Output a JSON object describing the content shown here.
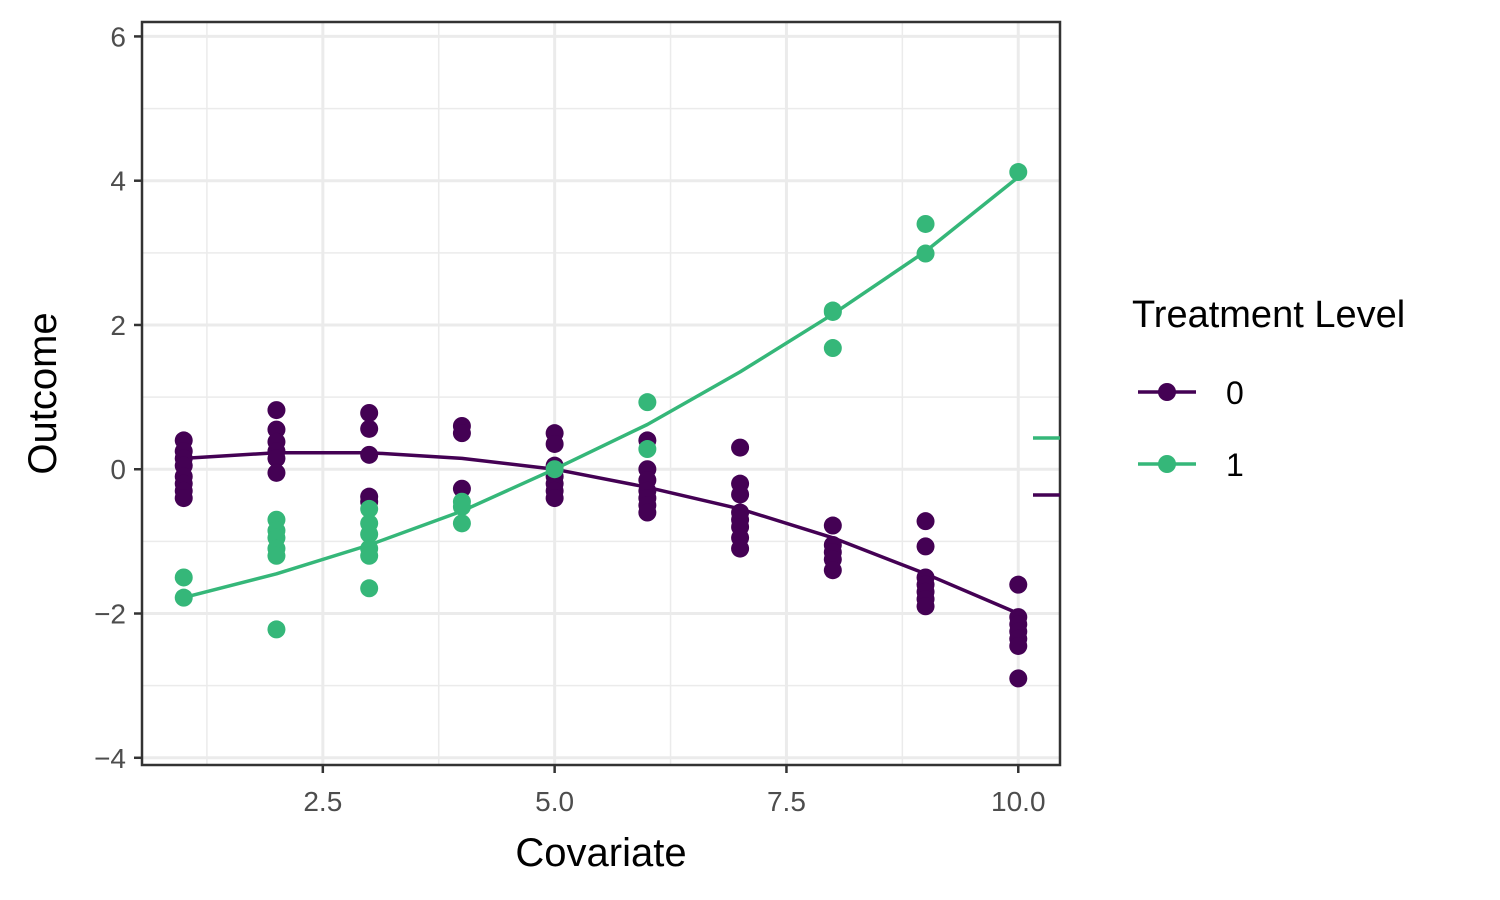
{
  "chart_data": {
    "type": "scatter",
    "title": "",
    "xlabel": "Covariate",
    "ylabel": "Outcome",
    "xlim": [
      0.55,
      10.45
    ],
    "ylim": [
      -4.1,
      6.2
    ],
    "x_ticks": [
      2.5,
      5.0,
      7.5,
      10.0
    ],
    "x_tick_labels": [
      "2.5",
      "5.0",
      "7.5",
      "10.0"
    ],
    "y_ticks": [
      -4,
      -2,
      0,
      2,
      4,
      6
    ],
    "y_tick_labels": [
      "−4",
      "−2",
      "0",
      "2",
      "4",
      "6"
    ],
    "grid": true,
    "legend": {
      "title": "Treatment Level",
      "position": "right"
    },
    "series": [
      {
        "name": "0",
        "color": "#440154",
        "points": [
          [
            1,
            0.4
          ],
          [
            1,
            0.25
          ],
          [
            1,
            0.15
          ],
          [
            1,
            0.05
          ],
          [
            1,
            -0.1
          ],
          [
            1,
            -0.2
          ],
          [
            1,
            -0.3
          ],
          [
            1,
            -0.4
          ],
          [
            2,
            0.82
          ],
          [
            2,
            0.55
          ],
          [
            2,
            0.38
          ],
          [
            2,
            0.25
          ],
          [
            2,
            0.15
          ],
          [
            2,
            -0.05
          ],
          [
            3,
            0.78
          ],
          [
            3,
            0.56
          ],
          [
            3,
            0.2
          ],
          [
            3,
            -0.38
          ],
          [
            3,
            -0.45
          ],
          [
            4,
            0.6
          ],
          [
            4,
            0.5
          ],
          [
            4,
            -0.27
          ],
          [
            5,
            0.5
          ],
          [
            5,
            0.35
          ],
          [
            5,
            0.05
          ],
          [
            5,
            -0.1
          ],
          [
            5,
            -0.2
          ],
          [
            5,
            -0.3
          ],
          [
            5,
            -0.4
          ],
          [
            6,
            0.4
          ],
          [
            6,
            0.0
          ],
          [
            6,
            -0.15
          ],
          [
            6,
            -0.3
          ],
          [
            6,
            -0.4
          ],
          [
            6,
            -0.5
          ],
          [
            6,
            -0.6
          ],
          [
            7,
            0.3
          ],
          [
            7,
            -0.2
          ],
          [
            7,
            -0.35
          ],
          [
            7,
            -0.6
          ],
          [
            7,
            -0.7
          ],
          [
            7,
            -0.8
          ],
          [
            7,
            -0.95
          ],
          [
            7,
            -1.1
          ],
          [
            8,
            -0.78
          ],
          [
            8,
            -1.05
          ],
          [
            8,
            -1.15
          ],
          [
            8,
            -1.25
          ],
          [
            8,
            -1.4
          ],
          [
            9,
            -0.72
          ],
          [
            9,
            -1.07
          ],
          [
            9,
            -1.5
          ],
          [
            9,
            -1.6
          ],
          [
            9,
            -1.7
          ],
          [
            9,
            -1.8
          ],
          [
            9,
            -1.9
          ],
          [
            10,
            -1.6
          ],
          [
            10,
            -2.05
          ],
          [
            10,
            -2.15
          ],
          [
            10,
            -2.25
          ],
          [
            10,
            -2.35
          ],
          [
            10,
            -2.45
          ],
          [
            10,
            -2.9
          ]
        ],
        "fit": [
          [
            1,
            0.15
          ],
          [
            2,
            0.23
          ],
          [
            3,
            0.23
          ],
          [
            4,
            0.15
          ],
          [
            5,
            0.0
          ],
          [
            6,
            -0.25
          ],
          [
            7,
            -0.55
          ],
          [
            8,
            -0.95
          ],
          [
            9,
            -1.45
          ],
          [
            10,
            -2.0
          ]
        ]
      },
      {
        "name": "1",
        "color": "#35B779",
        "points": [
          [
            1,
            -1.5
          ],
          [
            1,
            -1.78
          ],
          [
            2,
            -0.7
          ],
          [
            2,
            -0.85
          ],
          [
            2,
            -0.95
          ],
          [
            2,
            -1.1
          ],
          [
            2,
            -1.2
          ],
          [
            2,
            -2.22
          ],
          [
            3,
            -0.55
          ],
          [
            3,
            -0.75
          ],
          [
            3,
            -0.9
          ],
          [
            3,
            -1.1
          ],
          [
            3,
            -1.2
          ],
          [
            3,
            -1.65
          ],
          [
            4,
            -0.45
          ],
          [
            4,
            -0.52
          ],
          [
            4,
            -0.75
          ],
          [
            5,
            0.0
          ],
          [
            6,
            0.93
          ],
          [
            6,
            0.28
          ],
          [
            8,
            2.2
          ],
          [
            8,
            2.18
          ],
          [
            8,
            1.68
          ],
          [
            9,
            3.4
          ],
          [
            9,
            2.99
          ],
          [
            10,
            4.12
          ]
        ],
        "fit": [
          [
            1,
            -1.78
          ],
          [
            2,
            -1.45
          ],
          [
            3,
            -1.05
          ],
          [
            4,
            -0.58
          ],
          [
            5,
            0.0
          ],
          [
            6,
            0.62
          ],
          [
            7,
            1.35
          ],
          [
            8,
            2.15
          ],
          [
            9,
            3.02
          ],
          [
            10,
            4.05
          ]
        ]
      }
    ]
  }
}
